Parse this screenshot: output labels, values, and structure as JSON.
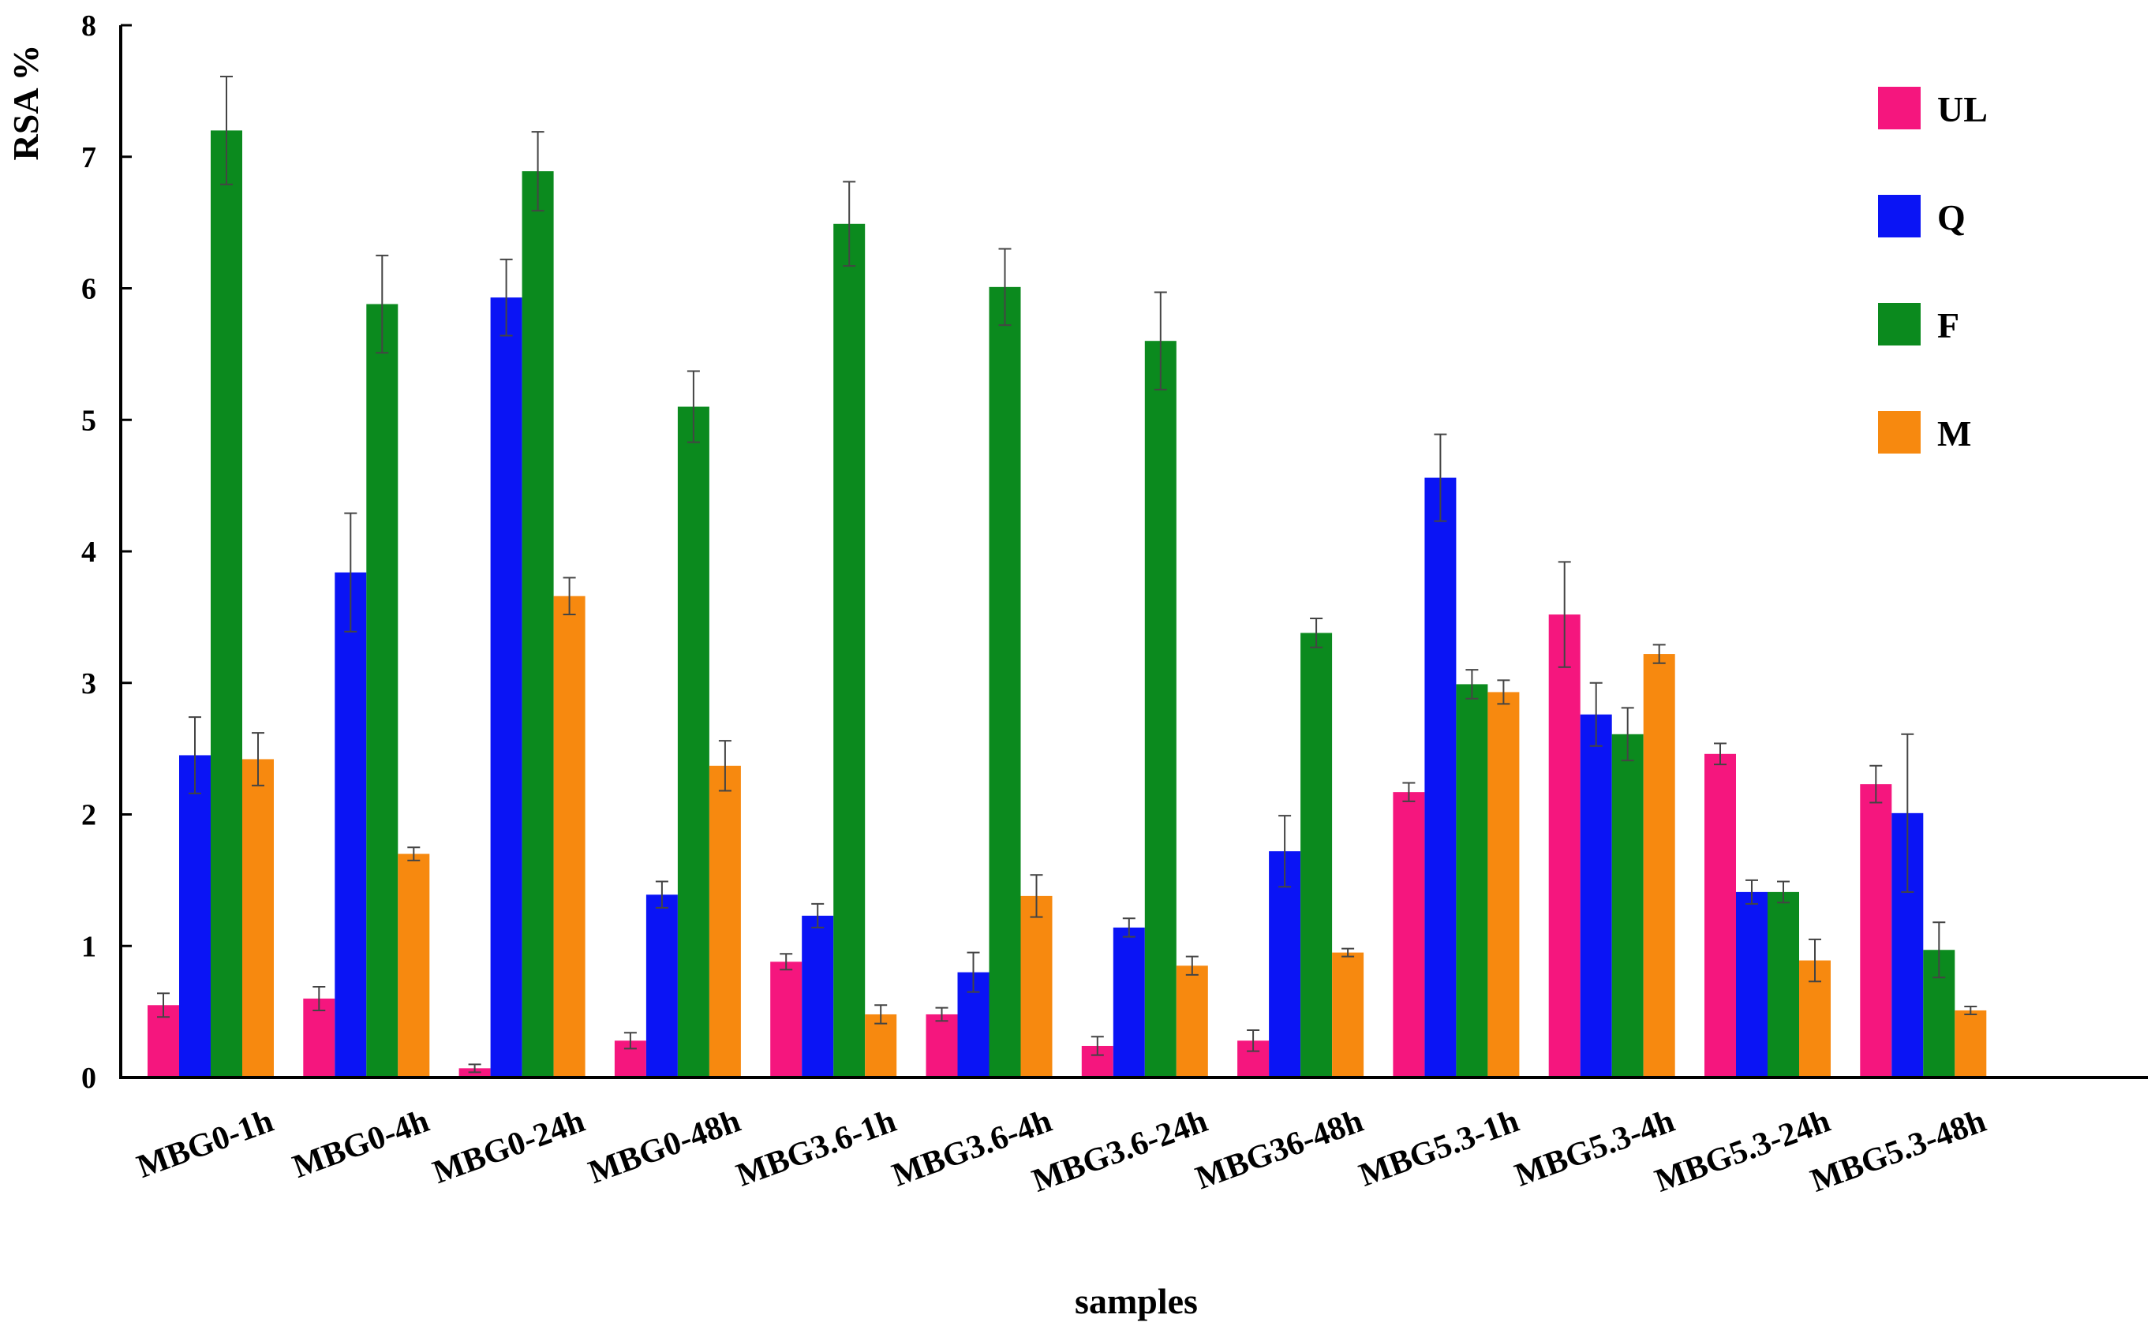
{
  "chart_data": {
    "type": "bar",
    "title": "",
    "xlabel": "samples",
    "ylabel": "RSA %",
    "ylim": [
      0,
      8
    ],
    "yticks": [
      "0",
      "1",
      "2",
      "3",
      "4",
      "5",
      "6",
      "7",
      "8"
    ],
    "grid": false,
    "legend_position": "top-right",
    "categories": [
      "MBG0-1h",
      "MBG0-4h",
      "MBG0-24h",
      "MBG0-48h",
      "MBG3.6-1h",
      "MBG3.6-4h",
      "MBG3.6-24h",
      "MBG36-48h",
      "MBG5.3-1h",
      "MBG5.3-4h",
      "MBG5.3-24h",
      "MBG5.3-48h"
    ],
    "series": [
      {
        "name": "UL",
        "color": "#f5167e",
        "values": [
          0.55,
          0.6,
          0.07,
          0.28,
          0.88,
          0.48,
          0.24,
          0.28,
          2.17,
          3.52,
          2.46,
          2.23
        ],
        "errors": [
          0.09,
          0.09,
          0.03,
          0.06,
          0.06,
          0.05,
          0.07,
          0.08,
          0.07,
          0.4,
          0.08,
          0.14
        ]
      },
      {
        "name": "Q",
        "color": "#0a14f5",
        "values": [
          2.45,
          3.84,
          5.93,
          1.39,
          1.23,
          0.8,
          1.14,
          1.72,
          4.56,
          2.76,
          1.41,
          2.01
        ],
        "errors": [
          0.29,
          0.45,
          0.29,
          0.1,
          0.09,
          0.15,
          0.07,
          0.27,
          0.33,
          0.24,
          0.09,
          0.6
        ]
      },
      {
        "name": "F",
        "color": "#0b8a1e",
        "values": [
          7.2,
          5.88,
          6.89,
          5.1,
          6.49,
          6.01,
          5.6,
          3.38,
          2.99,
          2.61,
          1.41,
          0.97
        ],
        "errors": [
          0.41,
          0.37,
          0.3,
          0.27,
          0.32,
          0.29,
          0.37,
          0.11,
          0.11,
          0.2,
          0.08,
          0.21
        ]
      },
      {
        "name": "M",
        "color": "#f7890f",
        "values": [
          2.42,
          1.7,
          3.66,
          2.37,
          0.48,
          1.38,
          0.85,
          0.95,
          2.93,
          3.22,
          0.89,
          0.51
        ],
        "errors": [
          0.2,
          0.05,
          0.14,
          0.19,
          0.07,
          0.16,
          0.07,
          0.03,
          0.09,
          0.07,
          0.16,
          0.03
        ]
      }
    ]
  }
}
